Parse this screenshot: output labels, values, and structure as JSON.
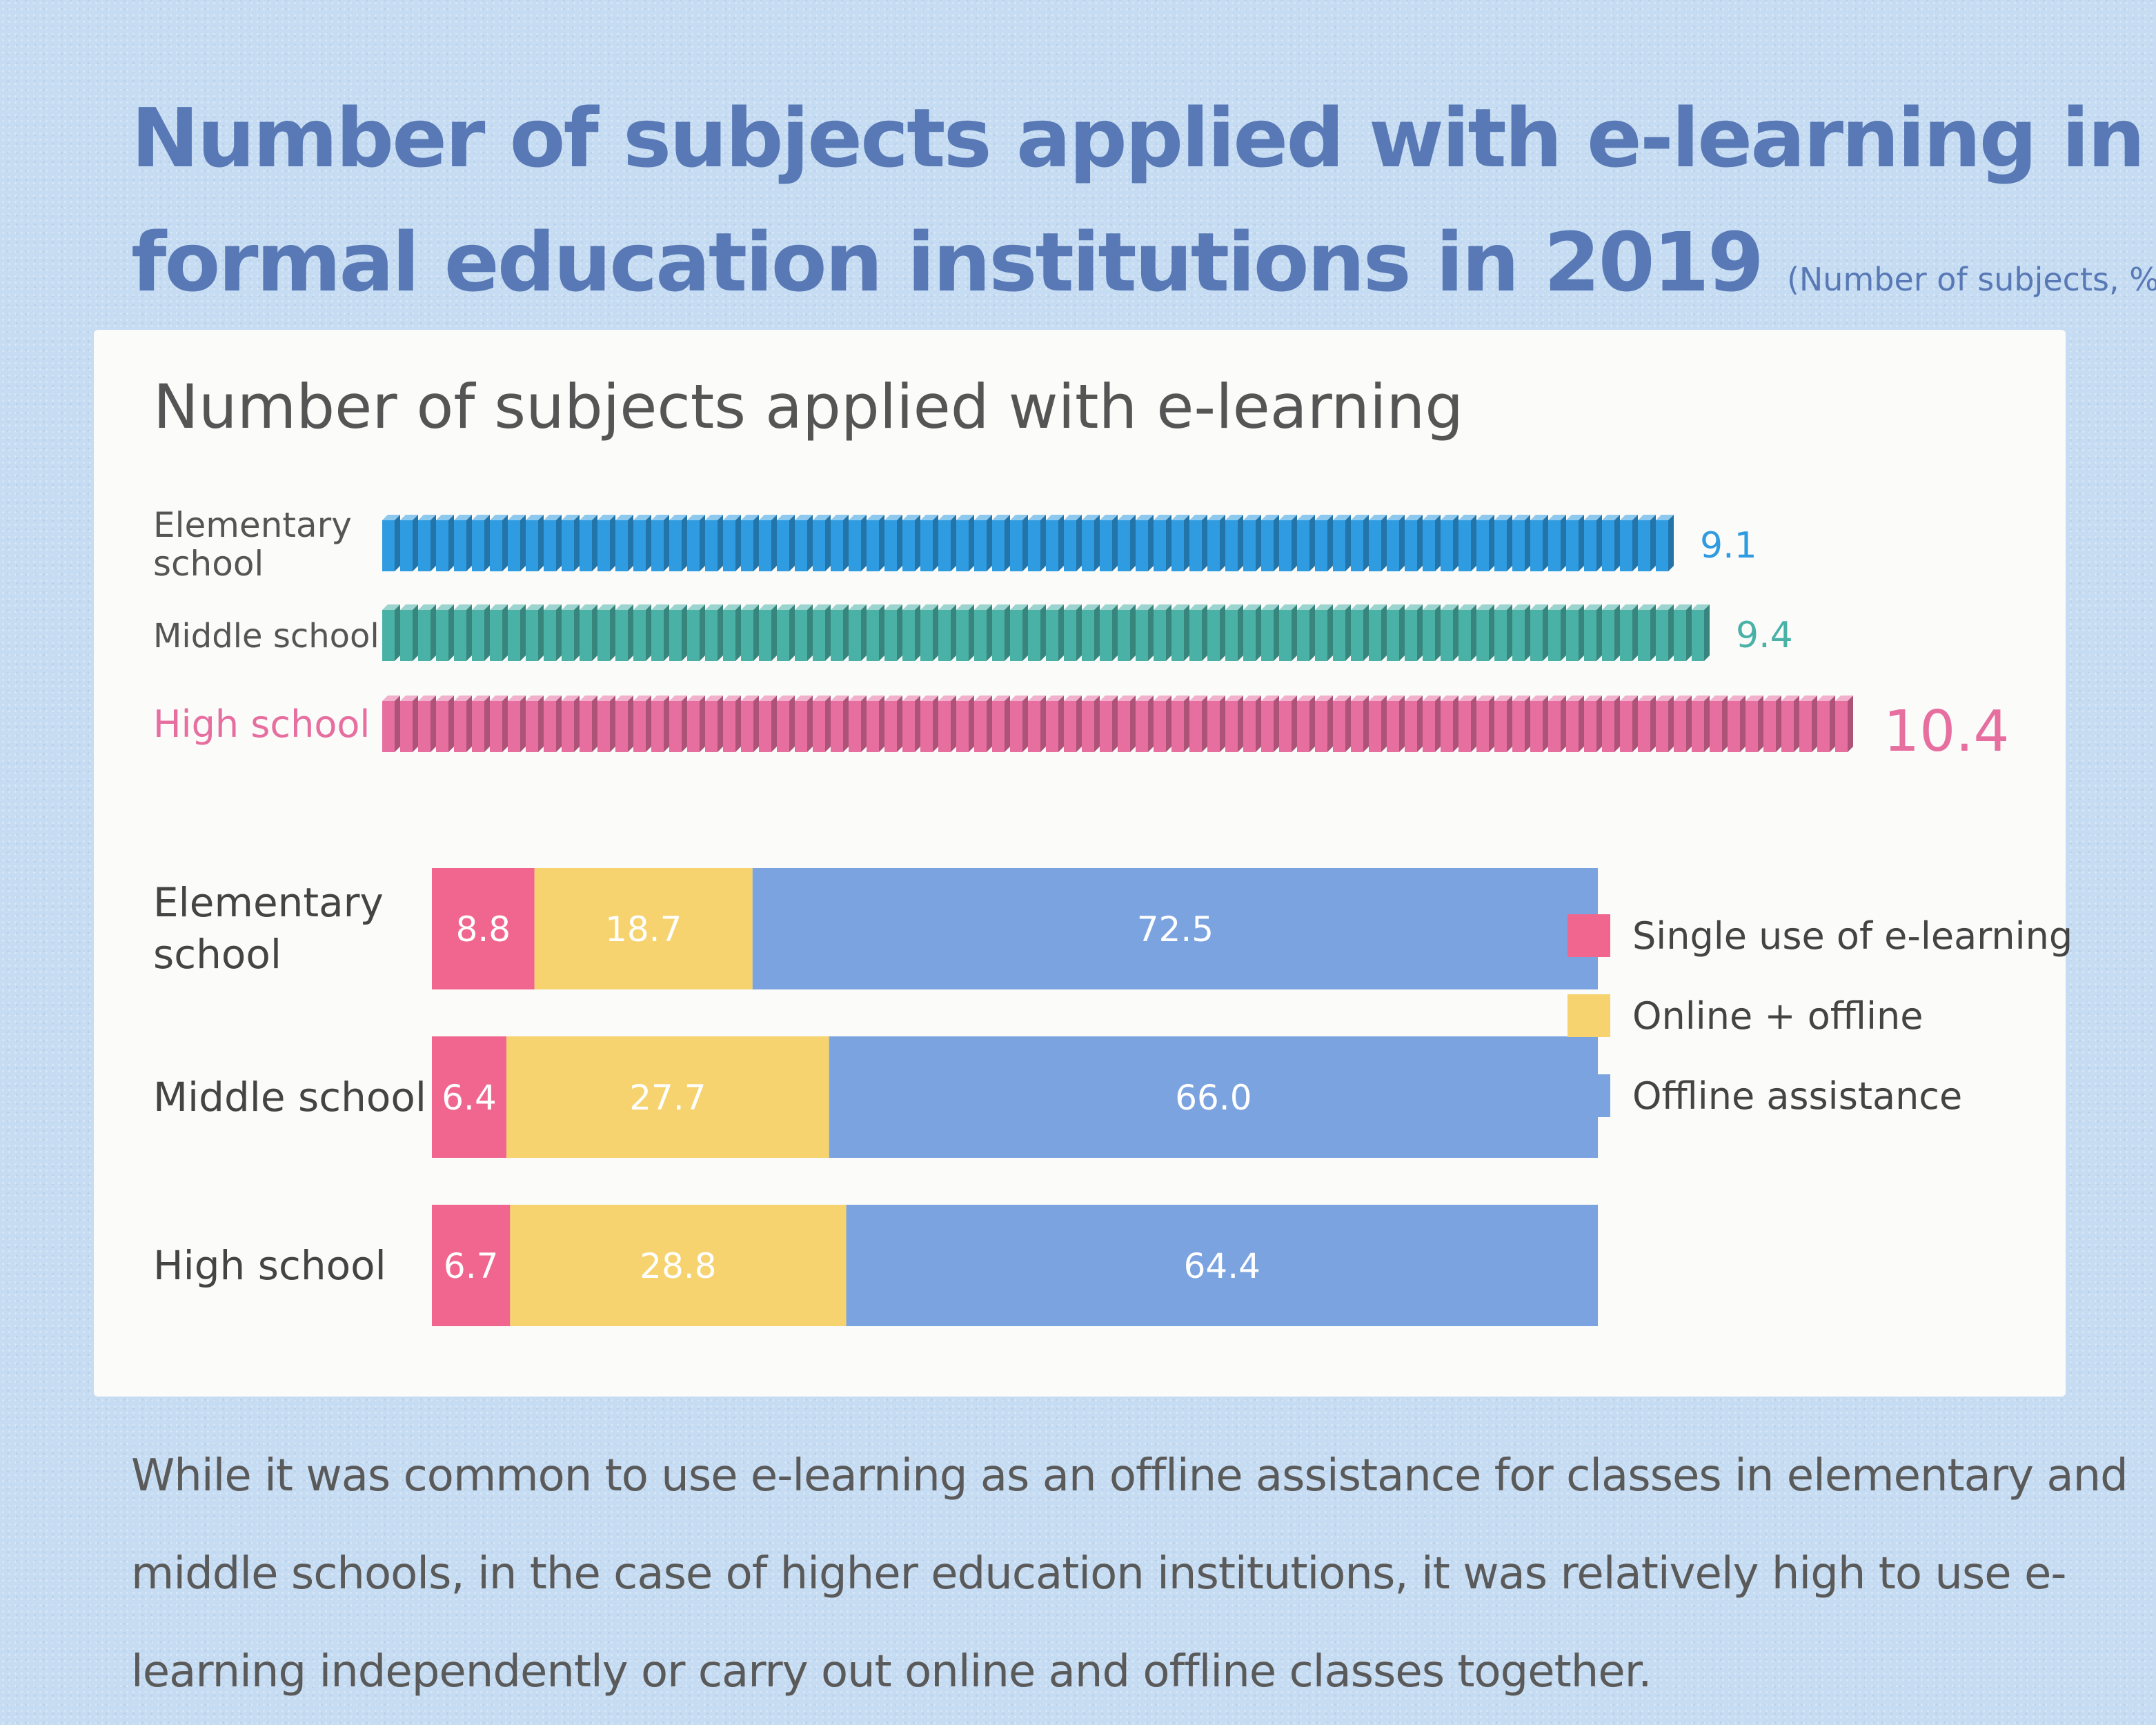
{
  "title": {
    "line1": "Number of subjects applied with e-learning in",
    "line2": "formal education institutions in 2019",
    "unit": "(Number of subjects, %)"
  },
  "colors": {
    "elementary": "#2f9be0",
    "middle": "#4ab1a6",
    "high": "#e66fa0",
    "single": "#f0668e",
    "online_offline": "#f6d36f",
    "offline_assist": "#7ba3e0"
  },
  "chart_data": [
    {
      "type": "bar",
      "title": "Number of subjects applied with e-learning",
      "categories": [
        "Elementary school",
        "Middle school",
        "High school"
      ],
      "values": [
        9.1,
        9.4,
        10.4
      ],
      "value_labels": [
        "9.1",
        "9.4",
        "10.4"
      ],
      "orientation": "horizontal",
      "grid": false
    },
    {
      "type": "bar",
      "stacked": true,
      "orientation": "horizontal",
      "categories": [
        "Elementary school",
        "Middle school",
        "High school"
      ],
      "series": [
        {
          "name": "Single use of e-learning",
          "values": [
            8.8,
            6.4,
            6.7
          ]
        },
        {
          "name": "Online + offline",
          "values": [
            18.7,
            27.7,
            28.8
          ]
        },
        {
          "name": "Offline assistance",
          "values": [
            72.5,
            66.0,
            64.4
          ]
        }
      ],
      "value_labels": [
        [
          "8.8",
          "18.7",
          "72.5"
        ],
        [
          "6.4",
          "27.7",
          "66.0"
        ],
        [
          "6.7",
          "28.8",
          "64.4"
        ]
      ],
      "legend_position": "right",
      "grid": false
    }
  ],
  "description": "While it was common to use e-learning as an offline assistance for classes in elementary and middle schools, in the case of higher education institutions, it was relatively high to use e-learning independently or carry out online and offline classes together."
}
